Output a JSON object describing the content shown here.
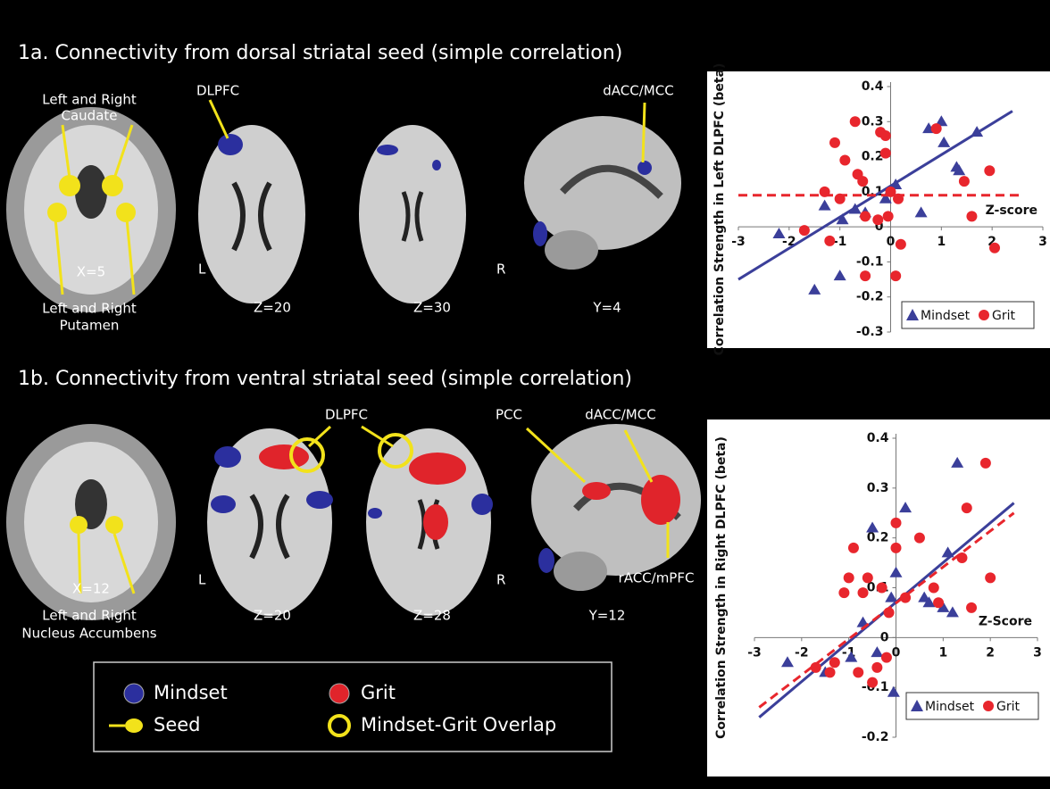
{
  "panels": [
    {
      "title": "1a. Connectivity from dorsal striatal seed (simple correlation)",
      "labels": {
        "caudate": [
          "Left and Right",
          "Caudate"
        ],
        "putamen": [
          "Left and Right",
          "Putamen"
        ],
        "coronal": "X=5",
        "dlpfc": "DLPFC",
        "left": "L",
        "axial1": "Z=20",
        "axial2": "Z=30",
        "right": "R",
        "dacc": "dACC/MCC",
        "sagittal": "Y=4"
      }
    },
    {
      "title": "1b. Connectivity from ventral striatal seed (simple correlation)",
      "labels": {
        "accumbens": [
          "Left and Right",
          "Nucleus Accumbens"
        ],
        "coronal": "X=12",
        "dlpfc": "DLPFC",
        "pcc": "PCC",
        "dacc": "dACC/MCC",
        "left": "L",
        "axial1": "Z=20",
        "axial2": "Z=28",
        "right": "R",
        "racc": "rACC/mPFC",
        "sagittal": "Y=12"
      }
    }
  ],
  "legend": {
    "mindset": "Mindset",
    "grit": "Grit",
    "seed": "Seed",
    "overlap": "Mindset-Grit Overlap"
  },
  "chart_data": [
    {
      "type": "scatter",
      "x_label": "Z-score",
      "y_label": "Correlation Strength in Left DLPFC (beta)",
      "xlim": [
        -3,
        3
      ],
      "ylim": [
        -0.3,
        0.4
      ],
      "xticks": [
        -3,
        -2,
        -1,
        0,
        1,
        2,
        3
      ],
      "yticks": [
        -0.3,
        -0.2,
        -0.1,
        0,
        0.1,
        0.2,
        0.3,
        0.4
      ],
      "series": [
        {
          "name": "Mindset",
          "color": "#3b3f9a",
          "marker": "triangle",
          "x": [
            -2.2,
            -1.5,
            -1.3,
            -1.0,
            -0.95,
            -0.7,
            -0.5,
            0.1,
            0.6,
            0.75,
            1.0,
            1.05,
            1.3,
            1.35,
            1.7,
            0.0,
            -0.1
          ],
          "values": [
            -0.02,
            -0.18,
            0.06,
            -0.14,
            0.02,
            0.05,
            0.04,
            0.12,
            0.04,
            0.28,
            0.3,
            0.24,
            0.17,
            0.16,
            0.27,
            0.1,
            0.08
          ],
          "fit": {
            "x": [
              -3,
              2.4
            ],
            "y": [
              -0.15,
              0.33
            ],
            "dashed": false
          }
        },
        {
          "name": "Grit",
          "color": "#e8262d",
          "marker": "circle",
          "x": [
            -1.7,
            -1.3,
            -1.1,
            -1.0,
            -0.9,
            -0.7,
            -0.65,
            -0.55,
            -0.5,
            -0.2,
            -0.1,
            -0.1,
            -0.05,
            0.0,
            0.1,
            0.15,
            0.2,
            0.9,
            1.45,
            1.6,
            1.95,
            2.05,
            -0.5,
            -1.2,
            -0.25
          ],
          "values": [
            -0.01,
            0.1,
            0.24,
            0.08,
            0.19,
            0.3,
            0.15,
            0.13,
            0.03,
            0.27,
            0.26,
            0.21,
            0.03,
            0.1,
            -0.14,
            0.08,
            -0.05,
            0.28,
            0.13,
            0.03,
            0.16,
            -0.06,
            -0.14,
            -0.04,
            0.02
          ],
          "fit": {
            "x": [
              -3,
              2.6
            ],
            "y": [
              0.09,
              0.09
            ],
            "dashed": true
          }
        }
      ]
    },
    {
      "type": "scatter",
      "x_label": "Z-Score",
      "y_label": "Correlation Strength in Right DLPFC (beta)",
      "xlim": [
        -3,
        3
      ],
      "ylim": [
        -0.2,
        0.4
      ],
      "xticks": [
        -3,
        -2,
        -1,
        0,
        1,
        2,
        3
      ],
      "yticks": [
        -0.2,
        -0.1,
        0,
        0.1,
        0.2,
        0.3,
        0.4
      ],
      "series": [
        {
          "name": "Mindset",
          "color": "#3b3f9a",
          "marker": "triangle",
          "x": [
            -2.3,
            -1.5,
            -0.7,
            -0.5,
            -0.4,
            0.0,
            0.2,
            -0.05,
            0.6,
            0.7,
            1.0,
            1.2,
            1.1,
            1.3,
            -0.1,
            -0.95
          ],
          "values": [
            -0.05,
            -0.07,
            0.03,
            0.22,
            -0.03,
            0.13,
            0.26,
            -0.11,
            0.08,
            0.07,
            0.06,
            0.05,
            0.17,
            0.35,
            0.08,
            -0.04
          ],
          "fit": {
            "x": [
              -2.9,
              2.5
            ],
            "y": [
              -0.16,
              0.27
            ],
            "dashed": false
          }
        },
        {
          "name": "Grit",
          "color": "#e8262d",
          "marker": "circle",
          "x": [
            -1.7,
            -1.4,
            -1.3,
            -1.1,
            -1.0,
            -0.9,
            -0.8,
            -0.6,
            -0.5,
            -0.4,
            -0.3,
            -0.2,
            0.0,
            0.0,
            -0.15,
            0.2,
            0.8,
            0.9,
            1.5,
            1.4,
            1.9,
            2.0,
            0.5,
            1.6,
            -0.7
          ],
          "values": [
            -0.06,
            -0.07,
            -0.05,
            0.09,
            0.12,
            0.18,
            -0.07,
            0.12,
            -0.09,
            -0.06,
            0.1,
            -0.04,
            0.23,
            0.18,
            0.05,
            0.08,
            0.1,
            0.07,
            0.26,
            0.16,
            0.35,
            0.12,
            0.2,
            0.06,
            0.09
          ],
          "fit": {
            "x": [
              -2.9,
              2.5
            ],
            "y": [
              -0.14,
              0.25
            ],
            "dashed": true
          }
        }
      ]
    }
  ]
}
